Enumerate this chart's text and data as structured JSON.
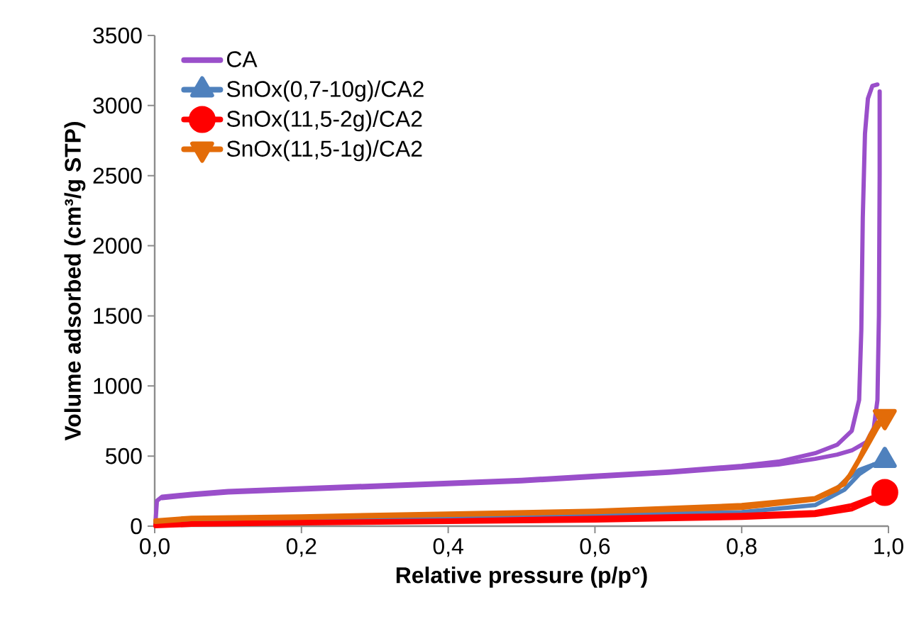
{
  "chart_data": {
    "type": "line",
    "xlabel": "Relative pressure (p/p°)",
    "ylabel": "Volume adsorbed (cm³/g STP)",
    "xlim": [
      0,
      1
    ],
    "ylim": [
      0,
      3500
    ],
    "xticks": [
      {
        "value": 0,
        "label": "0,0"
      },
      {
        "value": 0.2,
        "label": "0,2"
      },
      {
        "value": 0.4,
        "label": "0,4"
      },
      {
        "value": 0.6,
        "label": "0,6"
      },
      {
        "value": 0.8,
        "label": "0,8"
      },
      {
        "value": 1,
        "label": "1,0"
      }
    ],
    "yticks": [
      0,
      500,
      1000,
      1500,
      2000,
      2500,
      3000,
      3500
    ],
    "grid": false,
    "legend": "top left",
    "line_style": "solid",
    "series": [
      {
        "name": "CA",
        "color": "#9a4fca",
        "x": [
          0.001,
          0.003,
          0.01,
          0.05,
          0.1,
          0.2,
          0.3,
          0.4,
          0.5,
          0.6,
          0.7,
          0.8,
          0.85,
          0.9,
          0.93,
          0.95,
          0.96,
          0.963,
          0.965,
          0.968,
          0.972,
          0.978,
          0.985
        ],
        "values": [
          20,
          180,
          210,
          230,
          250,
          270,
          290,
          310,
          330,
          360,
          390,
          430,
          460,
          520,
          580,
          680,
          900,
          1400,
          2200,
          2800,
          3050,
          3140,
          3150
        ]
      },
      {
        "color": "#9a4fca",
        "x": [
          0.01,
          0.05,
          0.1,
          0.2,
          0.3,
          0.4,
          0.5,
          0.6,
          0.7,
          0.8,
          0.85,
          0.9,
          0.93,
          0.95,
          0.97,
          0.98,
          0.985,
          0.987,
          0.988,
          0.988
        ],
        "values": [
          200,
          220,
          240,
          260,
          280,
          300,
          320,
          350,
          380,
          420,
          440,
          480,
          510,
          540,
          600,
          700,
          900,
          1500,
          2500,
          3100
        ]
      },
      {
        "color": "#4f81bd",
        "x": [
          0.001,
          0.05,
          0.2,
          0.4,
          0.6,
          0.8,
          0.9,
          0.94,
          0.96,
          0.98,
          0.995
        ],
        "values": [
          20,
          null,
          50,
          60,
          80,
          100,
          150,
          260,
          370,
          440,
          470
        ]
      },
      {
        "color": "#4f81bd",
        "x": [
          0.92,
          0.94,
          0.96,
          0.98
        ],
        "values": [
          220,
          320,
          400,
          440
        ]
      },
      {
        "name": "SnOx(0,7-10g)/CA2",
        "type": "scatter",
        "color": "#4f81bd",
        "marker": "triangle",
        "x": [
          0.995
        ],
        "values": [
          470
        ]
      },
      {
        "color": "#ff0000",
        "x": [
          0.001,
          0.05,
          0.2,
          0.4,
          0.6,
          0.8,
          0.9,
          0.95,
          0.98,
          0.995
        ],
        "values": [
          0,
          10,
          20,
          30,
          40,
          60,
          80,
          120,
          190,
          240
        ]
      },
      {
        "color": "#ff0000",
        "x": [
          0.001,
          0.05,
          0.2,
          0.4,
          0.6,
          0.8,
          0.9,
          0.95,
          0.98
        ],
        "values": [
          10,
          20,
          30,
          40,
          60,
          80,
          100,
          150,
          210
        ]
      },
      {
        "name": "SnOx(11,5-2g)/CA2",
        "type": "scatter",
        "color": "#ff0000",
        "marker": "circle",
        "x": [
          0.995
        ],
        "values": [
          240
        ]
      },
      {
        "color": "#e36c09",
        "x": [
          0.001,
          0.05,
          0.2,
          0.4,
          0.6,
          0.8,
          0.9,
          0.93,
          0.95,
          0.97,
          0.985,
          0.995
        ],
        "values": [
          30,
          50,
          60,
          80,
          100,
          130,
          190,
          260,
          380,
          560,
          700,
          780
        ]
      },
      {
        "color": "#e36c09",
        "x": [
          0.001,
          0.05,
          0.2,
          0.4,
          0.6,
          0.8,
          0.9,
          0.94,
          0.96,
          0.975,
          0.985
        ],
        "values": [
          40,
          60,
          70,
          90,
          110,
          150,
          200,
          300,
          480,
          650,
          740
        ]
      },
      {
        "name": "SnOx(11,5-1g)/CA2",
        "type": "scatter",
        "color": "#e36c09",
        "marker": "triangle-down",
        "x": [
          0.995
        ],
        "values": [
          780
        ]
      }
    ]
  }
}
